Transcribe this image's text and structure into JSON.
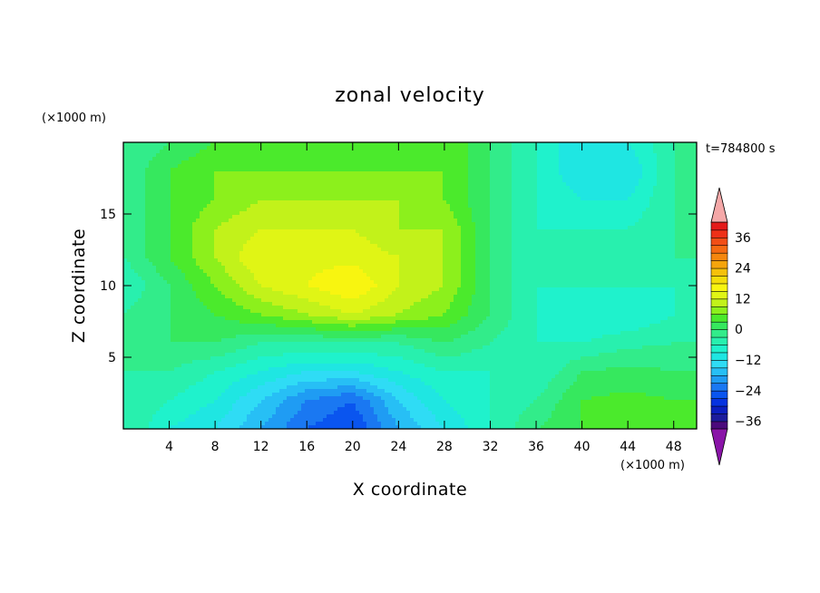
{
  "chart_data": {
    "type": "heatmap",
    "title": "zonal velocity",
    "xlabel": "X coordinate",
    "ylabel": "Z coordinate",
    "x_unit": "(×1000 m)",
    "y_unit": "(×1000 m)",
    "time_label": "t=784800 s",
    "xlim": [
      0,
      50
    ],
    "ylim": [
      0,
      20
    ],
    "x_ticks": [
      4,
      8,
      12,
      16,
      20,
      24,
      28,
      32,
      36,
      40,
      44,
      48
    ],
    "y_ticks": [
      5,
      10,
      15
    ],
    "colorbar": {
      "levels": [
        -42,
        -39,
        -36,
        -33,
        -30,
        -27,
        -24,
        -21,
        -18,
        -15,
        -12,
        -9,
        -6,
        -3,
        0,
        3,
        6,
        9,
        12,
        15,
        18,
        21,
        24,
        27,
        30,
        33,
        36,
        39,
        42
      ],
      "colors": [
        "#4b0a7c",
        "#1c1c9c",
        "#0b1fbf",
        "#0633e0",
        "#0a55ef",
        "#1a78f2",
        "#1f9cf3",
        "#27bff5",
        "#2fdcf5",
        "#1fe6e2",
        "#1ff2cc",
        "#28f0ae",
        "#32ec8a",
        "#36e85e",
        "#4bea2c",
        "#8cf01c",
        "#c2f21a",
        "#e0f515",
        "#f8f510",
        "#f4dd0a",
        "#f5c10a",
        "#f5a40c",
        "#f5870e",
        "#f56a12",
        "#f24e16",
        "#ee3118",
        "#e41a1a"
      ],
      "under_color": "#8a14a8",
      "over_color": "#f5a8a8",
      "tick_labels": [
        -36,
        -24,
        -12,
        0,
        12,
        24,
        36
      ]
    },
    "x_grid": [
      0,
      4,
      8,
      12,
      16,
      20,
      24,
      28,
      32,
      36,
      40,
      44,
      48
    ],
    "z_grid": [
      0,
      2,
      4,
      6,
      8,
      10,
      12,
      14,
      16,
      18,
      20
    ],
    "values": [
      [
        -3,
        -9,
        -12,
        -18,
        -24,
        -27,
        -18,
        -12,
        -6,
        0,
        3,
        6,
        3
      ],
      [
        -3,
        -6,
        -9,
        -15,
        -21,
        -24,
        -15,
        -9,
        -6,
        -3,
        3,
        4,
        3
      ],
      [
        -3,
        -3,
        -6,
        -9,
        -12,
        -12,
        -9,
        -6,
        -6,
        -6,
        0,
        1,
        0
      ],
      [
        0,
        0,
        0,
        -3,
        -3,
        -3,
        -3,
        0,
        -3,
        -6,
        -6,
        -4,
        -3
      ],
      [
        -3,
        0,
        3,
        6,
        9,
        12,
        9,
        6,
        0,
        -6,
        -9,
        -9,
        -6
      ],
      [
        -6,
        0,
        6,
        12,
        15,
        18,
        12,
        9,
        0,
        -6,
        -6,
        -6,
        -6
      ],
      [
        -3,
        3,
        9,
        15,
        14,
        14,
        12,
        9,
        0,
        -6,
        -6,
        -6,
        -3
      ],
      [
        -3,
        3,
        9,
        12,
        12,
        12,
        9,
        9,
        0,
        -6,
        -6,
        -6,
        -3
      ],
      [
        -3,
        3,
        6,
        9,
        9,
        9,
        9,
        6,
        0,
        -6,
        -9,
        -9,
        -3
      ],
      [
        -3,
        3,
        6,
        6,
        6,
        6,
        6,
        6,
        0,
        -6,
        -12,
        -12,
        -3
      ],
      [
        -3,
        0,
        3,
        3,
        3,
        3,
        3,
        6,
        0,
        -6,
        -12,
        -9,
        -3
      ]
    ]
  }
}
